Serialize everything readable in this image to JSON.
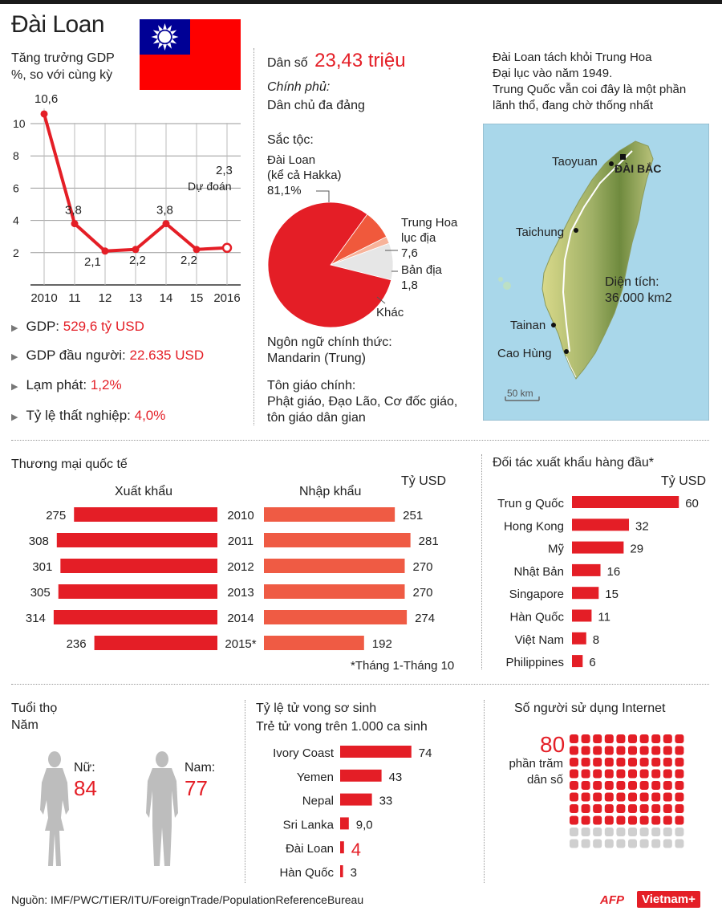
{
  "header": {
    "title": "Đài Loan",
    "flag_colors": {
      "red": "#fe0000",
      "blue": "#000095",
      "white": "#ffffff"
    }
  },
  "gdp": {
    "title_line1": "Tăng trưởng GDP",
    "title_line2": "%, so với cùng kỳ",
    "forecast_label": "Dự đoán",
    "forecast_value": "2,3"
  },
  "chart_data": [
    {
      "type": "line",
      "x": [
        "2010",
        "11",
        "12",
        "13",
        "14",
        "15",
        "2016"
      ],
      "values": [
        10.6,
        3.8,
        2.1,
        2.2,
        3.8,
        2.2,
        2.3
      ],
      "value_labels": [
        "10,6",
        "3,8",
        "2,1",
        "2,2",
        "3,8",
        "2,2",
        "2,3"
      ],
      "title": "Tăng trưởng GDP",
      "ylabel": "%, so với cùng kỳ",
      "ylim": [
        0,
        11
      ],
      "yticks": [
        "2",
        "4",
        "6",
        "8",
        "10"
      ],
      "grid": true,
      "color": "#e41e26"
    },
    {
      "type": "pie",
      "title": "Sắc tộc:",
      "labels": [
        "Đài Loan (kể cả Hakka)",
        "Trung Hoa lục địa",
        "Bản địa",
        "Khác"
      ],
      "values": [
        81.1,
        7.6,
        1.8,
        9.5
      ],
      "value_labels": [
        "81,1%",
        "7,6",
        "1,8",
        ""
      ],
      "colors": [
        "#e41e26",
        "#f0593c",
        "#f7b39a",
        "#e6e6e6"
      ]
    },
    {
      "type": "bar",
      "title": "Thương mại quốc tế",
      "unit": "Tỷ USD",
      "categories": [
        "2010",
        "2011",
        "2012",
        "2013",
        "2014",
        "2015*"
      ],
      "series": [
        {
          "name": "Xuất khẩu",
          "values": [
            275,
            308,
            301,
            305,
            314,
            236
          ],
          "color": "#e41e26"
        },
        {
          "name": "Nhập khẩu",
          "values": [
            251,
            281,
            270,
            270,
            274,
            192
          ],
          "color": "#ef5b44"
        }
      ],
      "note": "*Tháng 1-Tháng 10"
    },
    {
      "type": "bar",
      "title": "Đối tác xuất khẩu hàng đầu*",
      "unit": "Tỷ USD",
      "categories": [
        "Trun g Quốc",
        "Hong Kong",
        "Mỹ",
        "Nhật Bản",
        "Singapore",
        "Hàn Quốc",
        "Việt Nam",
        "Philippines"
      ],
      "values": [
        60,
        32,
        29,
        16,
        15,
        11,
        8,
        6
      ],
      "value_labels": [
        "60",
        "32",
        "29",
        "16",
        "15",
        "11",
        "8",
        "6"
      ],
      "color": "#e41e26"
    },
    {
      "type": "bar",
      "title": "Tỷ lệ tử vong sơ sinh",
      "subtitle": "Trẻ tử vong trên 1.000 ca sinh",
      "categories": [
        "Ivory Coast",
        "Yemen",
        "Nepal",
        "Sri Lanka",
        "Đài Loan",
        "Hàn Quốc"
      ],
      "values": [
        74,
        43,
        33,
        9.0,
        4,
        3
      ],
      "value_labels": [
        "74",
        "43",
        "33",
        "9,0",
        "4",
        "3"
      ],
      "highlight": "Đài Loan",
      "color": "#e41e26"
    }
  ],
  "stats": [
    {
      "label": "GDP:",
      "value": "529,6 tỷ USD"
    },
    {
      "label": "GDP đầu người:",
      "value": "22.635 USD"
    },
    {
      "label": "Lạm phát:",
      "value": "1,2%"
    },
    {
      "label": "Tỷ lệ thất nghiệp:",
      "value": "4,0%"
    }
  ],
  "info": {
    "population_label": "Dân số",
    "population_value": "23,43 triệu",
    "government_label": "Chính phủ:",
    "government_value": "Dân chủ đa đảng",
    "ethnic_label": "Sắc tộc:",
    "ethnic_main_line1": "Đài Loan",
    "ethnic_main_line2": "(kể cả Hakka)",
    "ethnic_main_value": "81,1%",
    "ethnic_china_line1": "Trung Hoa",
    "ethnic_china_line2": "lục địa",
    "ethnic_china_value": "7,6",
    "ethnic_native": "Bản địa",
    "ethnic_native_value": "1,8",
    "ethnic_other": "Khác",
    "language_label": "Ngôn ngữ chính thức:",
    "language_value": "Mandarin (Trung)",
    "religion_label": "Tôn giáo chính:",
    "religion_value_line1": "Phật giáo, Đạo Lão, Cơ đốc giáo,",
    "religion_value_line2": "tôn giáo dân gian"
  },
  "map": {
    "note_line1": "Đài Loan tách khỏi Trung Hoa",
    "note_line2": "Đại lục vào năm 1949.",
    "note_line3": "Trung Quốc vẫn coi đây là một phần",
    "note_line4": "lãnh thổ, đang chờ thống nhất",
    "capital": "ĐÀI BẮC",
    "cities": [
      "Taoyuan",
      "Taichung",
      "Tainan",
      "Cao Hùng"
    ],
    "area_label": "Diện tích:",
    "area_value": "36.000 km2",
    "scale": "50 km",
    "sea_color": "#a9d7ea"
  },
  "trade": {
    "title": "Thương mại quốc tế",
    "export_label": "Xuất khẩu",
    "import_label": "Nhập khẩu",
    "unit": "Tỷ USD",
    "note": "*Tháng 1-Tháng 10"
  },
  "partners": {
    "title": "Đối tác xuất khẩu hàng đầu*",
    "unit": "Tỷ USD"
  },
  "life": {
    "title": "Tuổi thọ",
    "subtitle": "Năm",
    "female_label": "Nữ:",
    "female_value": "84",
    "male_label": "Nam:",
    "male_value": "77"
  },
  "infant": {
    "title": "Tỷ lệ tử vong sơ sinh",
    "subtitle": "Trẻ tử vong trên 1.000 ca sinh"
  },
  "internet": {
    "title": "Số người sử dụng Internet",
    "value": "80",
    "percent": 80,
    "caption_line1": "phần trăm",
    "caption_line2": "dân số"
  },
  "footer": {
    "source": "Nguồn: IMF/PWC/TIER/ITU/ForeignTrade/PopulationReferenceBureau",
    "logo_afp": "AFP",
    "logo_vn": "Vietnam+"
  }
}
